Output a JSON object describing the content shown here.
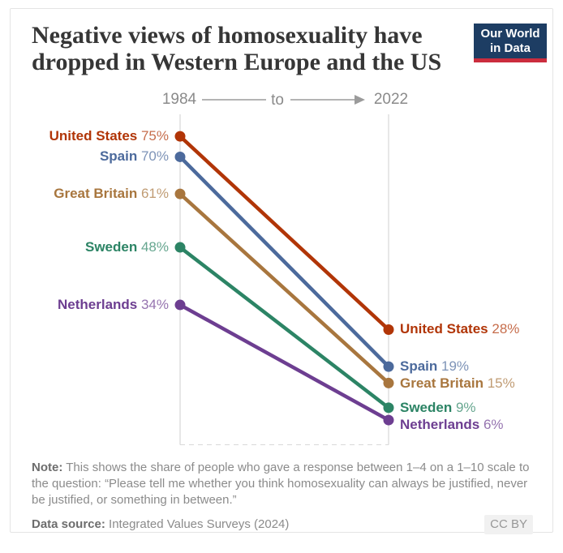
{
  "header": {
    "title": "Negative views of homosexuality have dropped in Western Europe and the US",
    "logo": {
      "line1": "Our World",
      "line2": "in Data",
      "bg_color": "#1d3d63",
      "accent_color": "#cb2d3e"
    }
  },
  "axis": {
    "start_year": "1984",
    "connector": "to",
    "end_year": "2022"
  },
  "chart_data": {
    "type": "line",
    "subtype": "slope",
    "x": [
      1984,
      2022
    ],
    "series": [
      {
        "name": "United States",
        "values": [
          75,
          28
        ],
        "color": "#B13507"
      },
      {
        "name": "Spain",
        "values": [
          70,
          19
        ],
        "color": "#4C6A9C"
      },
      {
        "name": "Great Britain",
        "values": [
          61,
          15
        ],
        "color": "#A8763E"
      },
      {
        "name": "Sweden",
        "values": [
          48,
          9
        ],
        "color": "#2C8465"
      },
      {
        "name": "Netherlands",
        "values": [
          34,
          6
        ],
        "color": "#6D3E91"
      }
    ],
    "value_suffix": "%",
    "ylim": [
      0,
      80
    ],
    "grid": "vertical gridline at each year, dashed line at 0%",
    "gridline_color": "#cfcfcf",
    "legend_position": "labels beside each line end"
  },
  "footer": {
    "note_label": "Note:",
    "note_text": "This shows the share of people who gave a response between 1–4 on a 1–10 scale to the question: “Please tell me whether you think homosexuality can always be justified, never be justified, or something in between.”",
    "source_label": "Data source:",
    "source_text": "Integrated Values Surveys (2024)",
    "license": "CC BY"
  }
}
